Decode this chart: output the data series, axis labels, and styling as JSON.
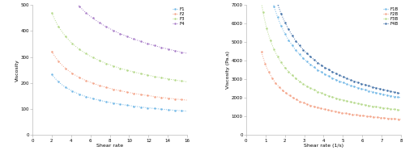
{
  "left": {
    "xlabel": "Shear rate",
    "ylabel": "Viscosity",
    "xlim": [
      0,
      16
    ],
    "ylim": [
      0,
      500
    ],
    "yticks": [
      0,
      100,
      200,
      300,
      400,
      500
    ],
    "xticks": [
      0,
      2,
      4,
      6,
      8,
      10,
      12,
      14,
      16
    ],
    "series": [
      {
        "label": "F1",
        "color": "#74b9e7",
        "K": 320,
        "n": 0.55,
        "x_start": 2.0,
        "x_end": 16.0,
        "npts": 100
      },
      {
        "label": "F2",
        "color": "#f4a58a",
        "K": 430,
        "n": 0.58,
        "x_start": 2.0,
        "x_end": 16.0,
        "npts": 100
      },
      {
        "label": "F3",
        "color": "#b5d98a",
        "K": 620,
        "n": 0.6,
        "x_start": 2.0,
        "x_end": 16.0,
        "npts": 100
      },
      {
        "label": "F4",
        "color": "#a87dc8",
        "K": 900,
        "n": 0.62,
        "x_start": 2.0,
        "x_end": 16.0,
        "npts": 100
      }
    ]
  },
  "right": {
    "xlabel": "Shear rate (1/s)",
    "ylabel": "Viscosity (Pa.s)",
    "xlim": [
      0,
      8
    ],
    "ylim": [
      0,
      7000
    ],
    "yticks": [
      0,
      1000,
      2000,
      3000,
      4000,
      5000,
      6000,
      7000
    ],
    "xticks": [
      0,
      1,
      2,
      3,
      4,
      5,
      6,
      7,
      8
    ],
    "series": [
      {
        "label": "F1B",
        "color": "#74b9e7",
        "K": 9000,
        "n": 0.28,
        "x_start": 0.5,
        "x_end": 8.0,
        "npts": 200
      },
      {
        "label": "F2B",
        "color": "#f4a58a",
        "K": 3800,
        "n": 0.28,
        "x_start": 0.8,
        "x_end": 8.0,
        "npts": 200
      },
      {
        "label": "F3B",
        "color": "#b5d98a",
        "K": 6000,
        "n": 0.28,
        "x_start": 0.5,
        "x_end": 8.0,
        "npts": 200
      },
      {
        "label": "F4B",
        "color": "#4472a8",
        "K": 10000,
        "n": 0.28,
        "x_start": 0.5,
        "x_end": 8.0,
        "npts": 200
      }
    ]
  },
  "background_color": "#ffffff",
  "font_size": 4.5,
  "line_width": 0.7,
  "linestyle": ":",
  "marker": "o",
  "marker_size": 0.8,
  "legend_fontsize": 4.0
}
